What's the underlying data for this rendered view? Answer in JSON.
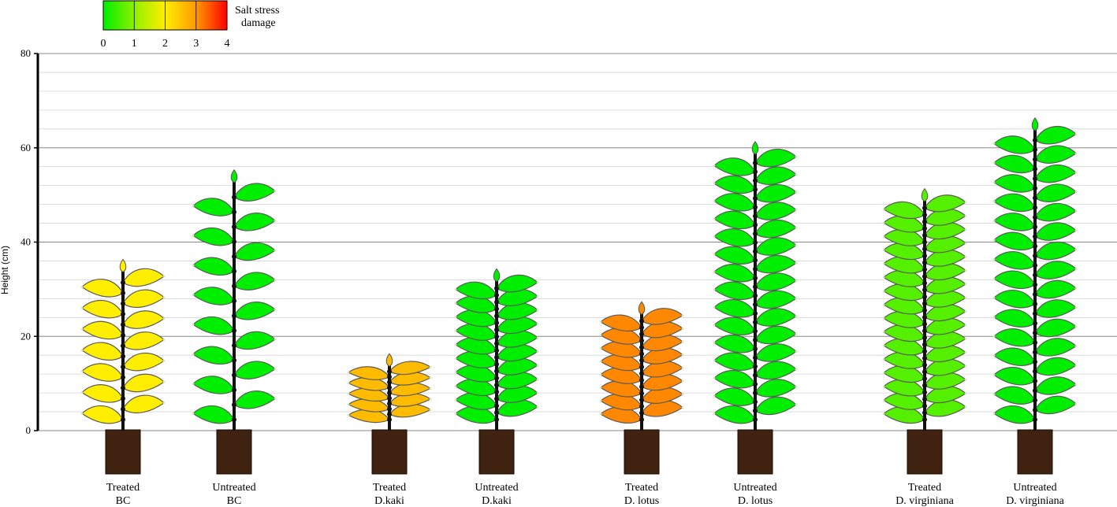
{
  "legend": {
    "title_line1": "Salt stress",
    "title_line2": "damage",
    "ticks": [
      "0",
      "1",
      "2",
      "3",
      "4"
    ],
    "colors": [
      "#00ee00",
      "#ffee00",
      "#ff9900",
      "#ff0000"
    ]
  },
  "chart_data": {
    "type": "bar",
    "ylabel": "Height (cm)",
    "ylim": [
      0,
      80
    ],
    "yticks": [
      0,
      20,
      40,
      60,
      80
    ],
    "grid": "horizontal",
    "categories": [
      [
        "Treated",
        "BC"
      ],
      [
        "Untreated",
        "BC"
      ],
      [
        "Treated",
        "D.kaki"
      ],
      [
        "Untreated",
        "D.kaki"
      ],
      [
        "Treated",
        "D. lotus"
      ],
      [
        "Untreated",
        "D. lotus"
      ],
      [
        "Treated",
        "D. virginiana"
      ],
      [
        "Untreated",
        "D. virginiana"
      ]
    ],
    "series": [
      {
        "values": [
          36,
          55,
          16,
          34,
          27,
          61,
          51,
          66
        ],
        "leaf_pairs": [
          7,
          8,
          5,
          10,
          8,
          15,
          16,
          15
        ],
        "damage": [
          2,
          0,
          2.5,
          0,
          3,
          0,
          0.5,
          0
        ]
      }
    ]
  }
}
